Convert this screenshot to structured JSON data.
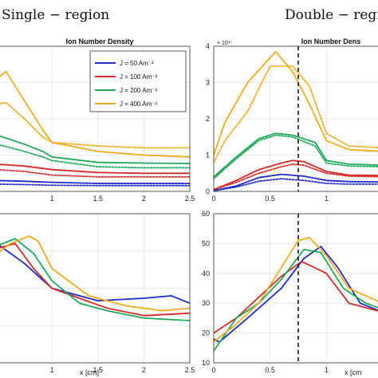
{
  "region_titles": {
    "left": "Single − region",
    "right": "Double − regi"
  },
  "colors": {
    "J50": "#1f2bc8",
    "J100": "#d42a2a",
    "J200": "#1faa5a",
    "J400": "#f0aa1e"
  },
  "legend": [
    "J = 50 Am⁻²",
    "J = 100 Am⁻²",
    "J = 200 Am⁻²",
    "J = 400 Am⁻²"
  ],
  "chart_data": [
    {
      "type": "line",
      "panel": "single-top",
      "title": "Ion Number Density",
      "xlim": [
        0.4,
        2.5
      ],
      "ylim": [
        0,
        4
      ],
      "xticks": [
        "1",
        "1.5",
        "2",
        "2.5"
      ],
      "legend_position": "top-right",
      "series": [
        {
          "name": "J = 50 Am⁻²",
          "color": "J50",
          "style": "solid",
          "x": [
            0.4,
            0.7,
            1.0,
            1.5,
            2.0,
            2.5
          ],
          "y": [
            0.3,
            0.28,
            0.25,
            0.22,
            0.22,
            0.22
          ]
        },
        {
          "name": "J = 50 Am⁻²",
          "color": "J50",
          "style": "dotted",
          "x": [
            0.4,
            0.7,
            1.0,
            1.5,
            2.0,
            2.5
          ],
          "y": [
            0.2,
            0.19,
            0.17,
            0.16,
            0.16,
            0.16
          ]
        },
        {
          "name": "J = 100 Am⁻²",
          "color": "J100",
          "style": "solid",
          "x": [
            0.4,
            0.7,
            1.0,
            1.5,
            2.0,
            2.5
          ],
          "y": [
            0.75,
            0.7,
            0.6,
            0.52,
            0.5,
            0.5
          ]
        },
        {
          "name": "J = 100 Am⁻²",
          "color": "J100",
          "style": "dotted",
          "x": [
            0.4,
            0.7,
            1.0,
            1.5,
            2.0,
            2.5
          ],
          "y": [
            0.6,
            0.55,
            0.45,
            0.4,
            0.4,
            0.4
          ]
        },
        {
          "name": "J = 200 Am⁻²",
          "color": "J200",
          "style": "solid",
          "x": [
            0.4,
            0.7,
            0.9,
            1.0,
            1.5,
            2.0,
            2.5
          ],
          "y": [
            1.55,
            1.3,
            1.1,
            0.95,
            0.8,
            0.78,
            0.77
          ]
        },
        {
          "name": "J = 200 Am⁻²",
          "color": "J200",
          "style": "dotted",
          "x": [
            0.4,
            0.7,
            0.9,
            1.0,
            1.5,
            2.0,
            2.5
          ],
          "y": [
            1.3,
            1.1,
            0.95,
            0.85,
            0.68,
            0.65,
            0.65
          ]
        },
        {
          "name": "J = 400 Am⁻²",
          "color": "J400",
          "style": "solid",
          "x": [
            0.4,
            0.5,
            0.7,
            0.9,
            1.0,
            1.5,
            2.0,
            2.5
          ],
          "y": [
            3.1,
            3.3,
            2.5,
            1.7,
            1.35,
            1.1,
            1.0,
            0.95
          ]
        },
        {
          "name": "J = 400 Am⁻²",
          "color": "J400",
          "style": "dotted",
          "x": [
            0.4,
            0.5,
            0.7,
            0.9,
            1.0,
            1.5,
            2.0,
            2.5
          ],
          "y": [
            2.4,
            2.45,
            2.0,
            1.5,
            1.35,
            1.25,
            1.2,
            1.2
          ]
        }
      ]
    },
    {
      "type": "line",
      "panel": "double-top",
      "title": "Ion Number Dens",
      "y_exponent": "× 10¹⁷",
      "xlim": [
        0,
        1.5
      ],
      "ylim": [
        0,
        4
      ],
      "xticks": [
        "0",
        "0.5",
        "1"
      ],
      "yticks": [
        "0",
        "1",
        "2",
        "3",
        "4"
      ],
      "vline_x": 0.75,
      "series": [
        {
          "name": "J = 50 Am⁻²",
          "color": "J50",
          "style": "solid",
          "x": [
            0,
            0.2,
            0.4,
            0.6,
            0.8,
            1.0,
            1.2,
            1.5
          ],
          "y": [
            0.02,
            0.15,
            0.38,
            0.47,
            0.42,
            0.3,
            0.27,
            0.26
          ]
        },
        {
          "name": "J = 50 Am⁻²",
          "color": "J50",
          "style": "dotted",
          "x": [
            0,
            0.2,
            0.4,
            0.6,
            0.8,
            1.0,
            1.2,
            1.5
          ],
          "y": [
            0.02,
            0.12,
            0.28,
            0.35,
            0.3,
            0.22,
            0.2,
            0.2
          ]
        },
        {
          "name": "J = 100 Am⁻²",
          "color": "J100",
          "style": "solid",
          "x": [
            0,
            0.2,
            0.4,
            0.6,
            0.7,
            0.8,
            1.0,
            1.2,
            1.5
          ],
          "y": [
            0.05,
            0.3,
            0.6,
            0.78,
            0.85,
            0.82,
            0.55,
            0.45,
            0.44
          ]
        },
        {
          "name": "J = 100 Am⁻²",
          "color": "J100",
          "style": "dotted",
          "x": [
            0,
            0.2,
            0.4,
            0.6,
            0.7,
            0.8,
            1.0,
            1.2,
            1.5
          ],
          "y": [
            0.05,
            0.25,
            0.5,
            0.68,
            0.75,
            0.72,
            0.5,
            0.42,
            0.4
          ]
        },
        {
          "name": "J = 200 Am⁻²",
          "color": "J200",
          "style": "solid",
          "x": [
            0,
            0.2,
            0.4,
            0.55,
            0.7,
            0.9,
            1.0,
            1.2,
            1.5
          ],
          "y": [
            0.4,
            0.95,
            1.45,
            1.6,
            1.55,
            1.35,
            0.85,
            0.75,
            0.72
          ]
        },
        {
          "name": "J = 200 Am⁻²",
          "color": "J200",
          "style": "dotted",
          "x": [
            0,
            0.2,
            0.4,
            0.55,
            0.7,
            0.9,
            1.0,
            1.2,
            1.5
          ],
          "y": [
            0.35,
            0.9,
            1.4,
            1.55,
            1.5,
            1.25,
            0.78,
            0.7,
            0.68
          ]
        },
        {
          "name": "J = 400 Am⁻²",
          "color": "J400",
          "style": "solid",
          "x": [
            0,
            0.1,
            0.3,
            0.55,
            0.7,
            0.85,
            1.0,
            1.2,
            1.5
          ],
          "y": [
            1.0,
            1.9,
            3.0,
            3.85,
            3.3,
            2.4,
            1.4,
            1.15,
            1.1
          ]
        },
        {
          "name": "J = 400 Am⁻²",
          "color": "J400",
          "style": "dotted",
          "x": [
            0,
            0.1,
            0.3,
            0.5,
            0.7,
            0.85,
            1.0,
            1.2,
            1.5
          ],
          "y": [
            0.8,
            1.4,
            2.2,
            3.45,
            3.45,
            2.9,
            1.6,
            1.25,
            1.2
          ]
        }
      ]
    },
    {
      "type": "line",
      "panel": "single-bottom",
      "xlabel": "x [cm]",
      "xlim": [
        0.4,
        2.5
      ],
      "ylim": [
        0,
        60
      ],
      "xticks": [
        "1",
        "1.5",
        "2",
        "2.5"
      ],
      "series": [
        {
          "name": "J = 50 Am⁻²",
          "color": "J50",
          "style": "solid",
          "x": [
            0.4,
            0.7,
            1.0,
            1.5,
            2.0,
            2.3,
            2.5
          ],
          "y": [
            48,
            40,
            30,
            25,
            26,
            27,
            24
          ]
        },
        {
          "name": "J = 100 Am⁻²",
          "color": "J100",
          "style": "solid",
          "x": [
            0.4,
            0.6,
            0.8,
            1.0,
            1.3,
            1.6,
            2.0,
            2.5
          ],
          "y": [
            46,
            48,
            38,
            30,
            26,
            22,
            19,
            20
          ]
        },
        {
          "name": "J = 200 Am⁻²",
          "color": "J200",
          "style": "solid",
          "x": [
            0.4,
            0.6,
            0.8,
            1.0,
            1.3,
            1.6,
            2.0,
            2.5
          ],
          "y": [
            47,
            50,
            44,
            33,
            24,
            21,
            18,
            17
          ]
        },
        {
          "name": "J = 400 Am⁻²",
          "color": "J400",
          "style": "solid",
          "x": [
            0.4,
            0.55,
            0.75,
            0.85,
            1.0,
            1.4,
            1.8,
            2.2,
            2.5
          ],
          "y": [
            44,
            48,
            51,
            49,
            38,
            27,
            23,
            21,
            22
          ]
        }
      ]
    },
    {
      "type": "line",
      "panel": "double-bottom",
      "xlabel": "x [cm",
      "xlim": [
        0,
        1.5
      ],
      "ylim": [
        10,
        60
      ],
      "xticks": [
        "0",
        "0.5",
        "1"
      ],
      "yticks": [
        "10",
        "20",
        "30",
        "40",
        "50",
        "60"
      ],
      "vline_x": 0.75,
      "series": [
        {
          "name": "J = 50 Am⁻²",
          "color": "J50",
          "style": "solid",
          "x": [
            0,
            0.05,
            0.3,
            0.6,
            0.8,
            0.95,
            1.1,
            1.3,
            1.5
          ],
          "y": [
            18,
            17,
            25,
            35,
            45,
            49,
            42,
            30,
            27
          ]
        },
        {
          "name": "J = 100 Am⁻²",
          "color": "J100",
          "style": "solid",
          "x": [
            0,
            0.2,
            0.4,
            0.6,
            0.78,
            1.0,
            1.2,
            1.5
          ],
          "y": [
            20,
            25,
            32,
            39,
            44,
            40,
            30,
            27
          ]
        },
        {
          "name": "J = 200 Am⁻²",
          "color": "J200",
          "style": "solid",
          "x": [
            0,
            0.2,
            0.4,
            0.6,
            0.8,
            0.95,
            1.15,
            1.35,
            1.5
          ],
          "y": [
            14,
            25,
            30,
            38,
            48,
            47,
            35,
            30,
            28
          ]
        },
        {
          "name": "J = 400 Am⁻²",
          "color": "J400",
          "style": "solid",
          "x": [
            0,
            0.2,
            0.4,
            0.6,
            0.75,
            0.85,
            1.0,
            1.2,
            1.5
          ],
          "y": [
            17,
            23,
            30,
            42,
            51,
            52,
            46,
            35,
            30
          ]
        }
      ]
    }
  ]
}
